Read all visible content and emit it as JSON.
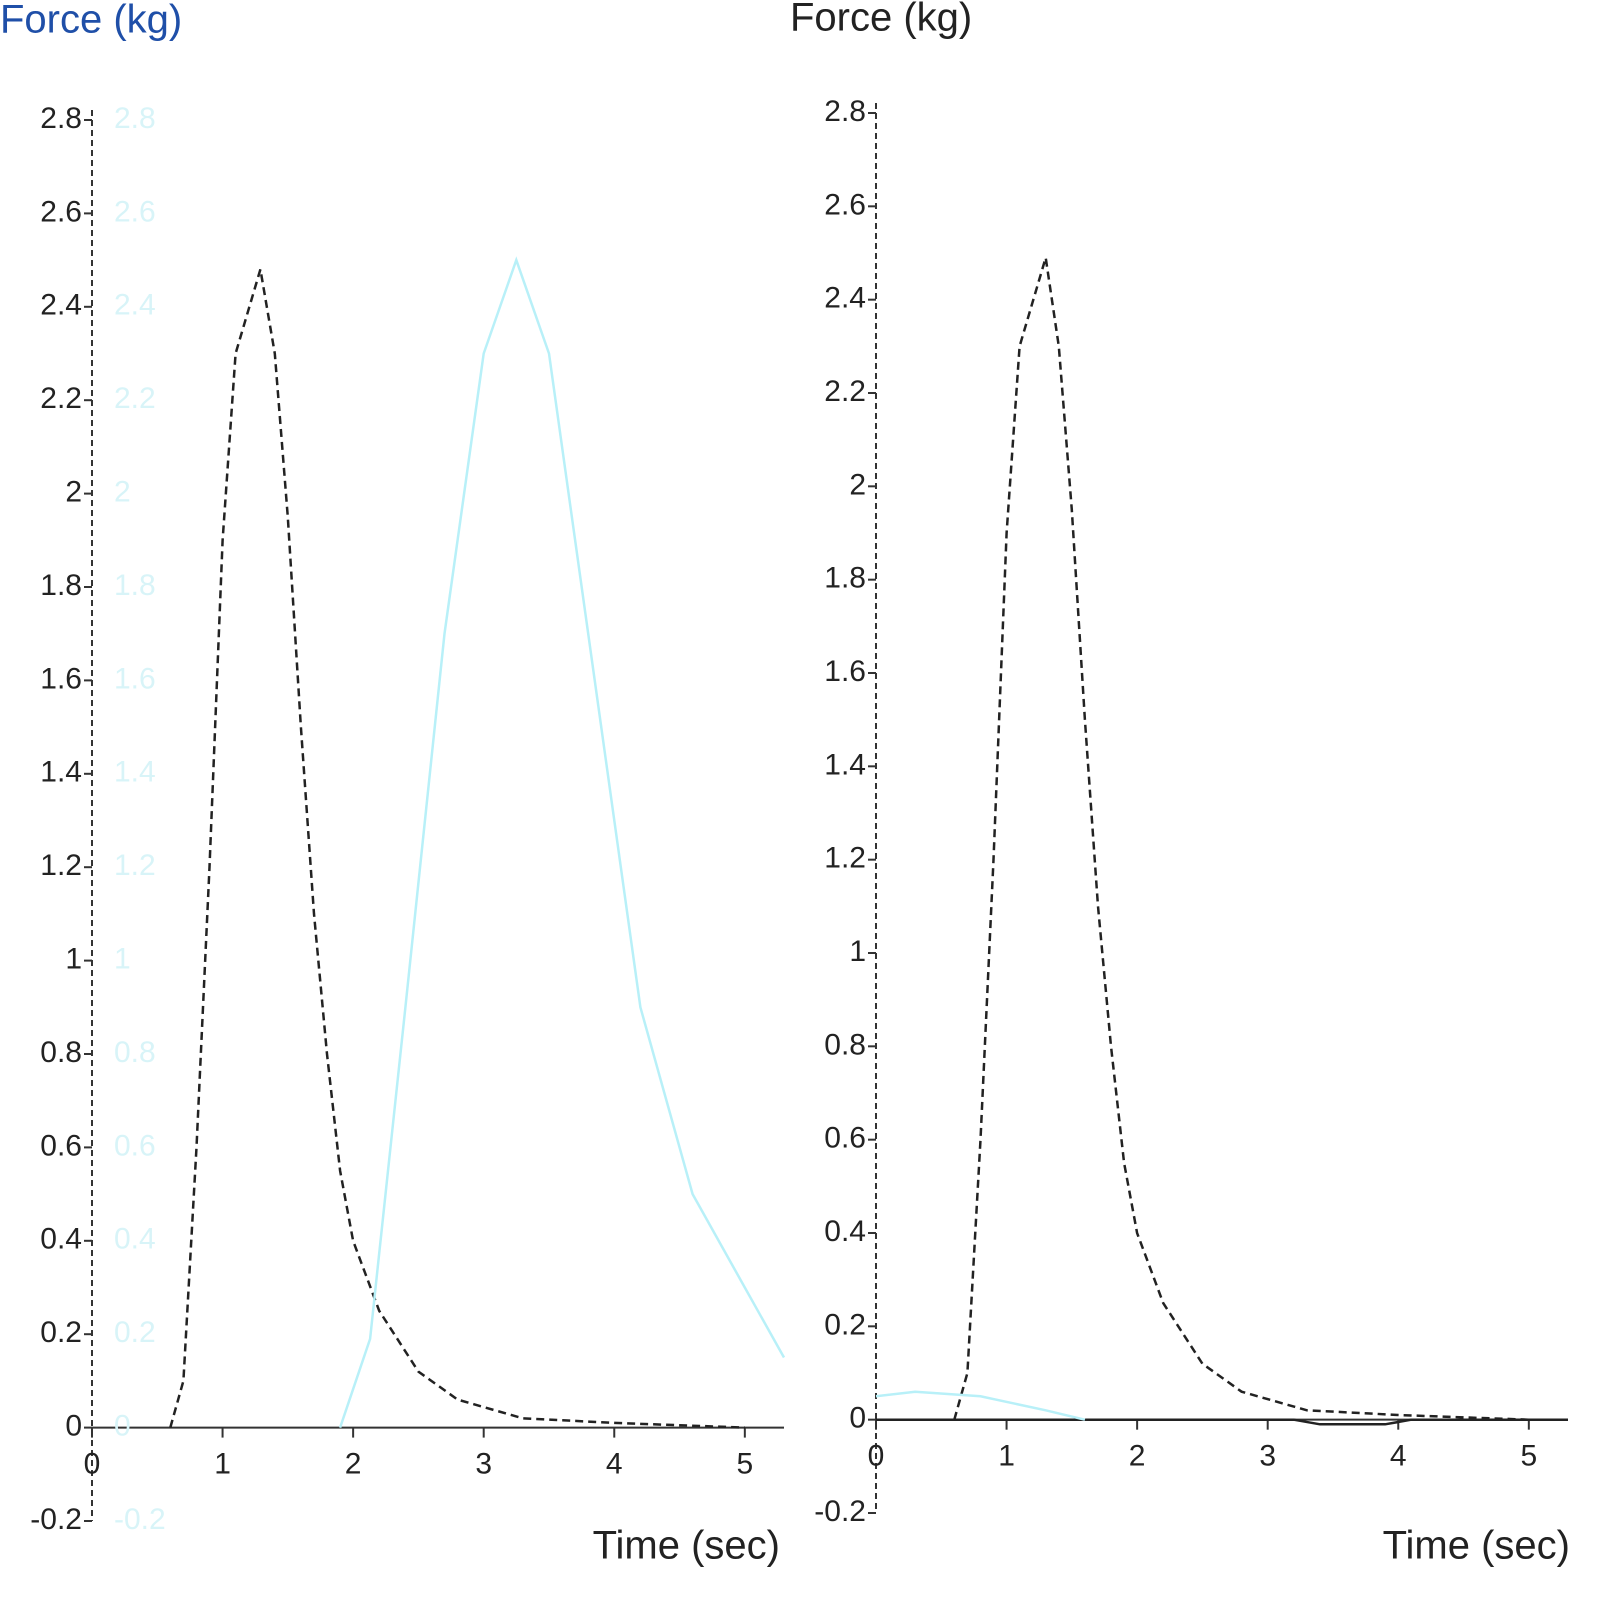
{
  "chart_data": [
    {
      "type": "line",
      "title": "Force (kg)",
      "title_color": "#1f4fa8",
      "xlabel": "Time (sec)",
      "xlim": [
        0,
        5.3
      ],
      "xticks": [
        0,
        1,
        2,
        3,
        4,
        5
      ],
      "ylim": [
        -0.2,
        2.8
      ],
      "yticks": [
        -0.2,
        0,
        0.2,
        0.4,
        0.6,
        0.8,
        1,
        1.2,
        1.4,
        1.6,
        1.8,
        2,
        2.2,
        2.4,
        2.6,
        2.8
      ],
      "y2lim": [
        -0.2,
        2.8
      ],
      "y2ticks": [
        -0.2,
        0,
        0.2,
        0.4,
        0.6,
        0.8,
        1,
        1.2,
        1.4,
        1.6,
        1.8,
        2,
        2.2,
        2.4,
        2.6,
        2.8
      ],
      "y2color": "#d8f4f8",
      "series": [
        {
          "color": "#222222",
          "dash": true,
          "x": [
            0.6,
            0.7,
            0.8,
            0.9,
            1.0,
            1.1,
            1.29,
            1.4,
            1.5,
            1.6,
            1.7,
            1.8,
            1.9,
            2.0,
            2.2,
            2.5,
            2.8,
            3.3,
            4.0,
            5.0
          ],
          "values": [
            0,
            0.1,
            0.6,
            1.2,
            1.9,
            2.3,
            2.48,
            2.3,
            1.95,
            1.5,
            1.1,
            0.8,
            0.55,
            0.4,
            0.25,
            0.12,
            0.06,
            0.02,
            0.01,
            0
          ]
        },
        {
          "color": "#b8f0f8",
          "dash": false,
          "axis": "y2",
          "x": [
            1.9,
            2.13,
            2.4,
            2.7,
            3.0,
            3.25,
            3.5,
            3.8,
            4.2,
            4.6,
            5.0,
            5.3
          ],
          "values": [
            0,
            0.19,
            0.9,
            1.7,
            2.3,
            2.5,
            2.3,
            1.7,
            0.9,
            0.5,
            0.3,
            0.15
          ]
        }
      ]
    },
    {
      "type": "line",
      "title": "Force (kg)",
      "title_color": "#222222",
      "xlabel": "Time (sec)",
      "xlim": [
        0,
        5.3
      ],
      "xticks": [
        0,
        1,
        2,
        3,
        4,
        5
      ],
      "ylim": [
        -0.2,
        2.8
      ],
      "yticks": [
        -0.2,
        0,
        0.2,
        0.4,
        0.6,
        0.8,
        1,
        1.2,
        1.4,
        1.6,
        1.8,
        2,
        2.2,
        2.4,
        2.6,
        2.8
      ],
      "series": [
        {
          "color": "#222222",
          "dash": true,
          "x": [
            0.6,
            0.7,
            0.8,
            0.9,
            1.0,
            1.1,
            1.3,
            1.4,
            1.5,
            1.6,
            1.7,
            1.8,
            1.9,
            2.0,
            2.2,
            2.5,
            2.8,
            3.3,
            4.0,
            5.0
          ],
          "values": [
            0,
            0.1,
            0.6,
            1.2,
            1.9,
            2.3,
            2.49,
            2.3,
            1.95,
            1.5,
            1.1,
            0.8,
            0.55,
            0.4,
            0.25,
            0.12,
            0.06,
            0.02,
            0.01,
            0
          ]
        },
        {
          "color": "#222222",
          "dash": false,
          "x": [
            0,
            3.2,
            3.4,
            3.9,
            4.1,
            5.3
          ],
          "values": [
            0,
            0,
            -0.01,
            -0.01,
            0,
            0
          ]
        },
        {
          "color": "#b8f0f8",
          "dash": false,
          "x": [
            0,
            0.3,
            0.8,
            1.3,
            1.6
          ],
          "values": [
            0.05,
            0.06,
            0.05,
            0.02,
            0
          ]
        }
      ]
    }
  ]
}
